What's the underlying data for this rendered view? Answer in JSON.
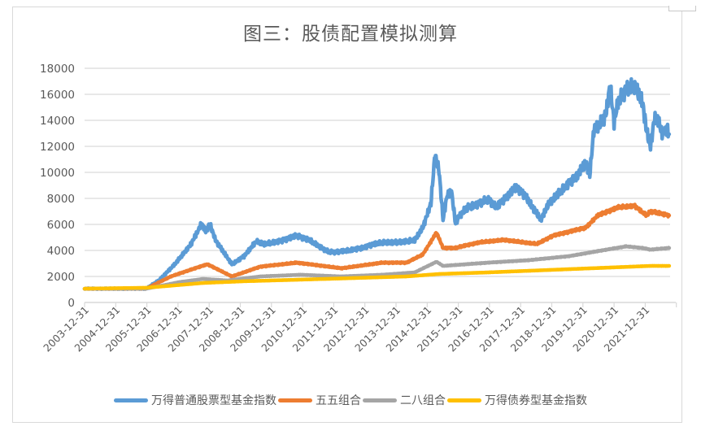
{
  "chart_data": {
    "type": "line",
    "title": "图三：股债配置模拟测算",
    "xlabel": "",
    "ylabel": "",
    "ylim": [
      0,
      18000
    ],
    "yticks": [
      0,
      2000,
      4000,
      6000,
      8000,
      10000,
      12000,
      14000,
      16000,
      18000
    ],
    "xlim": [
      2004.0,
      2023.0
    ],
    "xtick_labels": [
      "2003-12-31",
      "2004-12-31",
      "2005-12-31",
      "2006-12-31",
      "2007-12-31",
      "2008-12-31",
      "2009-12-31",
      "2010-12-31",
      "2011-12-31",
      "2012-12-31",
      "2013-12-31",
      "2014-12-31",
      "2015-12-31",
      "2016-12-31",
      "2017-12-31",
      "2018-12-31",
      "2019-12-31",
      "2020-12-31",
      "2021-12-31"
    ],
    "grid": true,
    "legend_position": "bottom",
    "series": [
      {
        "name": "万得普通股票型基金指数",
        "color": "#5b9bd5",
        "points": [
          [
            2004.0,
            1060
          ],
          [
            2004.94,
            1060
          ],
          [
            2005.98,
            1060
          ],
          [
            2006.38,
            1690
          ],
          [
            2006.9,
            2940
          ],
          [
            2007.42,
            4500
          ],
          [
            2007.76,
            6060
          ],
          [
            2007.89,
            5440
          ],
          [
            2008.02,
            6060
          ],
          [
            2008.2,
            4810
          ],
          [
            2008.46,
            3880
          ],
          [
            2008.73,
            2940
          ],
          [
            2009.12,
            3560
          ],
          [
            2009.51,
            4690
          ],
          [
            2009.77,
            4500
          ],
          [
            2010.16,
            4630
          ],
          [
            2010.81,
            5130
          ],
          [
            2011.21,
            4810
          ],
          [
            2011.6,
            4190
          ],
          [
            2011.86,
            3880
          ],
          [
            2012.12,
            3880
          ],
          [
            2012.51,
            4000
          ],
          [
            2012.9,
            4190
          ],
          [
            2013.29,
            4500
          ],
          [
            2013.69,
            4630
          ],
          [
            2014.21,
            4630
          ],
          [
            2014.6,
            4810
          ],
          [
            2014.86,
            5750
          ],
          [
            2015.12,
            7630
          ],
          [
            2015.25,
            11380
          ],
          [
            2015.38,
            10130
          ],
          [
            2015.51,
            6380
          ],
          [
            2015.64,
            8250
          ],
          [
            2015.78,
            8560
          ],
          [
            2015.91,
            6060
          ],
          [
            2016.04,
            6690
          ],
          [
            2016.3,
            7310
          ],
          [
            2016.69,
            7630
          ],
          [
            2016.95,
            7940
          ],
          [
            2017.21,
            7310
          ],
          [
            2017.6,
            8250
          ],
          [
            2017.86,
            8880
          ],
          [
            2018.13,
            8250
          ],
          [
            2018.39,
            7310
          ],
          [
            2018.65,
            6380
          ],
          [
            2018.91,
            7630
          ],
          [
            2019.17,
            8250
          ],
          [
            2019.56,
            9190
          ],
          [
            2019.83,
            9810
          ],
          [
            2020.09,
            10750
          ],
          [
            2020.22,
            9810
          ],
          [
            2020.35,
            13250
          ],
          [
            2020.61,
            13880
          ],
          [
            2020.74,
            14500
          ],
          [
            2020.87,
            16690
          ],
          [
            2021.0,
            13880
          ],
          [
            2021.13,
            15440
          ],
          [
            2021.39,
            16380
          ],
          [
            2021.65,
            16690
          ],
          [
            2021.91,
            15440
          ],
          [
            2022.04,
            13250
          ],
          [
            2022.17,
            12000
          ],
          [
            2022.3,
            14190
          ],
          [
            2022.43,
            13880
          ],
          [
            2022.56,
            12940
          ],
          [
            2022.7,
            13380
          ],
          [
            2022.77,
            12940
          ]
        ]
      },
      {
        "name": "五五组合",
        "color": "#ed7d31",
        "points": [
          [
            2004.0,
            1060
          ],
          [
            2005.98,
            1060
          ],
          [
            2006.77,
            2000
          ],
          [
            2007.55,
            2630
          ],
          [
            2007.94,
            2940
          ],
          [
            2008.73,
            2000
          ],
          [
            2009.64,
            2750
          ],
          [
            2010.81,
            3060
          ],
          [
            2012.25,
            2630
          ],
          [
            2013.56,
            3060
          ],
          [
            2014.34,
            3060
          ],
          [
            2014.86,
            3690
          ],
          [
            2015.3,
            5380
          ],
          [
            2015.51,
            4190
          ],
          [
            2015.9,
            4190
          ],
          [
            2016.69,
            4630
          ],
          [
            2017.47,
            4810
          ],
          [
            2018.52,
            4500
          ],
          [
            2019.04,
            5130
          ],
          [
            2020.09,
            5750
          ],
          [
            2020.48,
            6690
          ],
          [
            2021.13,
            7310
          ],
          [
            2021.65,
            7440
          ],
          [
            2022.04,
            6690
          ],
          [
            2022.17,
            7000
          ],
          [
            2022.43,
            6880
          ],
          [
            2022.77,
            6690
          ]
        ]
      },
      {
        "name": "二八组合",
        "color": "#a5a5a5",
        "points": [
          [
            2004.0,
            1060
          ],
          [
            2005.98,
            1060
          ],
          [
            2007.03,
            1560
          ],
          [
            2007.81,
            1810
          ],
          [
            2008.59,
            1690
          ],
          [
            2009.64,
            2000
          ],
          [
            2010.94,
            2130
          ],
          [
            2012.25,
            2000
          ],
          [
            2013.56,
            2130
          ],
          [
            2014.6,
            2310
          ],
          [
            2015.3,
            3130
          ],
          [
            2015.51,
            2810
          ],
          [
            2016.95,
            3060
          ],
          [
            2018.26,
            3250
          ],
          [
            2019.56,
            3560
          ],
          [
            2020.61,
            4000
          ],
          [
            2021.39,
            4310
          ],
          [
            2021.91,
            4190
          ],
          [
            2022.17,
            4060
          ],
          [
            2022.77,
            4190
          ]
        ]
      },
      {
        "name": "万得债券型基金指数",
        "color": "#ffc000",
        "points": [
          [
            2004.0,
            1060
          ],
          [
            2005.98,
            1130
          ],
          [
            2007.81,
            1500
          ],
          [
            2009.12,
            1630
          ],
          [
            2011.73,
            1810
          ],
          [
            2014.34,
            2000
          ],
          [
            2015.38,
            2190
          ],
          [
            2016.95,
            2310
          ],
          [
            2019.56,
            2560
          ],
          [
            2022.17,
            2810
          ],
          [
            2022.77,
            2810
          ]
        ]
      }
    ]
  }
}
